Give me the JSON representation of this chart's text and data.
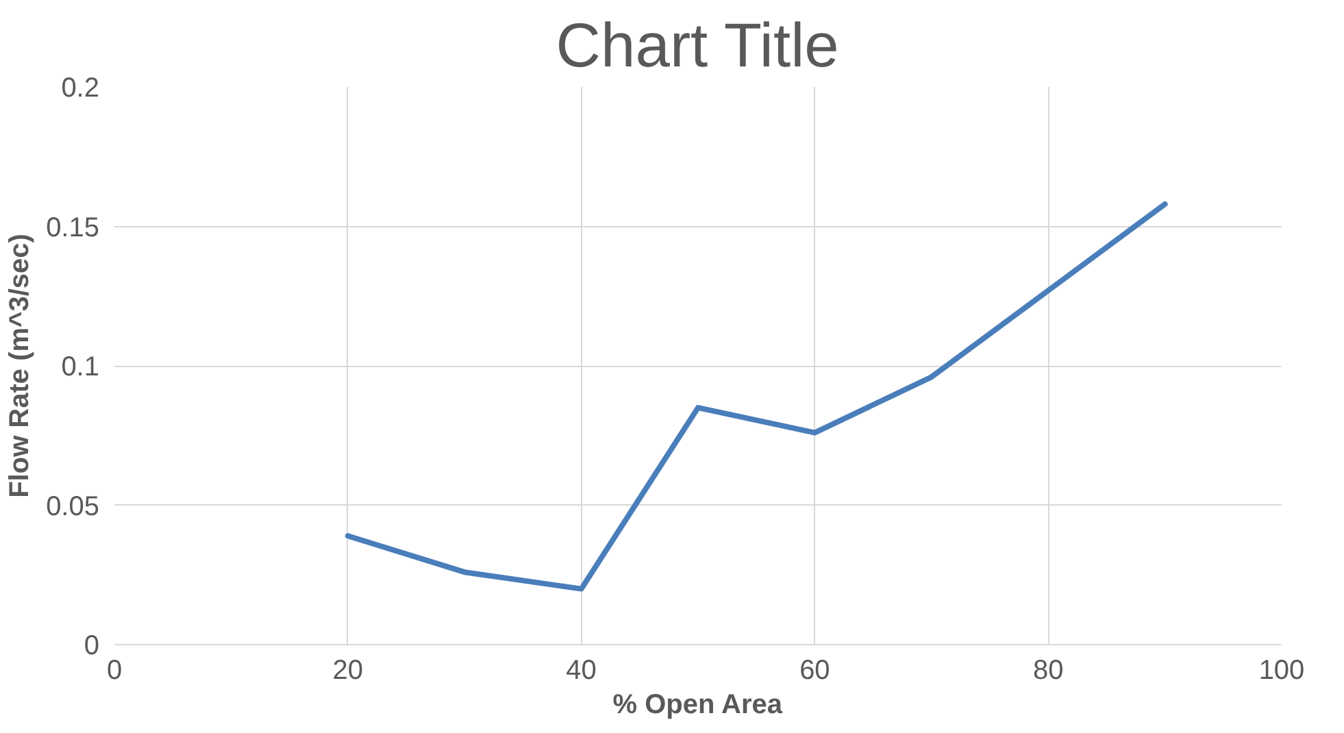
{
  "chart_data": {
    "type": "line",
    "title": "Chart Title",
    "xlabel": "% Open Area",
    "ylabel": "Flow Rate (m^3/sec)",
    "x": [
      20,
      30,
      40,
      50,
      60,
      70,
      80,
      90
    ],
    "series": [
      {
        "color": "#4a7ebb",
        "values": [
          0.039,
          0.026,
          0.02,
          0.085,
          0.076,
          0.096,
          0.127,
          0.158
        ]
      }
    ],
    "xlim": [
      0,
      100
    ],
    "xticks": [
      0,
      20,
      40,
      60,
      80,
      100
    ],
    "ylim": [
      0,
      0.2
    ],
    "yticks": [
      0,
      0.05,
      0.1,
      0.15,
      0.2
    ],
    "grid": true,
    "marker": "none",
    "line_style": "solid"
  }
}
